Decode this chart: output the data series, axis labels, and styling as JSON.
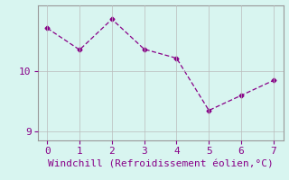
{
  "x": [
    0,
    1,
    2,
    3,
    4,
    5,
    6,
    7
  ],
  "y": [
    10.72,
    10.36,
    10.87,
    10.37,
    10.22,
    9.35,
    9.6,
    9.85
  ],
  "line_color": "#880088",
  "marker": "D",
  "marker_size": 2.5,
  "background_color": "#d8f5f0",
  "xlabel": "Windchill (Refroidissement éolien,°C)",
  "xlabel_color": "#880088",
  "tick_color": "#880088",
  "axis_color": "#999999",
  "grid_color": "#bbbbbb",
  "xlim": [
    -0.3,
    7.3
  ],
  "ylim": [
    8.85,
    11.1
  ],
  "yticks": [
    9,
    10
  ],
  "xticks": [
    0,
    1,
    2,
    3,
    4,
    5,
    6,
    7
  ],
  "xlabel_fontsize": 8,
  "tick_fontsize": 8
}
